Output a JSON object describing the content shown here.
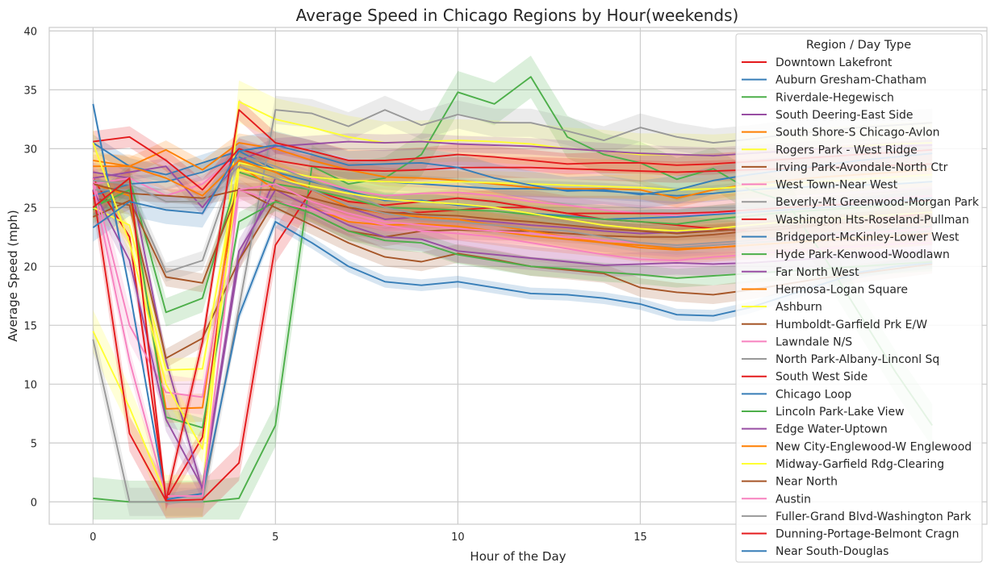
{
  "chart_data": {
    "type": "line",
    "title": "Average Speed in Chicago Regions by Hour(weekends)",
    "xlabel": "Hour of the Day",
    "ylabel": "Average Speed (mph)",
    "xlim": [
      -1.2,
      24.5
    ],
    "ylim": [
      -1.9,
      40.3
    ],
    "xticks": [
      0,
      5,
      10,
      15
    ],
    "yticks": [
      0,
      5,
      10,
      15,
      20,
      25,
      30,
      35,
      40
    ],
    "grid": true,
    "legend": {
      "title": "Region / Day Type",
      "placement": "top-right"
    },
    "x": [
      0,
      1,
      2,
      3,
      4,
      5,
      6,
      7,
      8,
      9,
      10,
      11,
      12,
      13,
      14,
      15,
      16,
      17,
      18,
      19,
      20,
      21,
      22,
      23
    ],
    "series": [
      {
        "name": "Downtown Lakefront",
        "color": "#e41a1c",
        "band": 0.8,
        "values": [
          27.5,
          22.5,
          0.2,
          5.5,
          28.5,
          27.5,
          26.5,
          25.5,
          25.2,
          25.5,
          25.8,
          25.5,
          25.0,
          24.5,
          24.0,
          23.8,
          23.5,
          23.2,
          23.0,
          23.2,
          23.5,
          23.8,
          24.2,
          24.6
        ]
      },
      {
        "name": "Auburn Gresham-Chatham",
        "color": "#377eb8",
        "band": 0.7,
        "values": [
          30.5,
          28.5,
          27.8,
          28.8,
          29.8,
          28.2,
          27.6,
          27.3,
          27.2,
          27.0,
          26.8,
          26.6,
          26.6,
          26.5,
          26.4,
          26.2,
          26.0,
          26.2,
          26.5,
          26.7,
          26.8,
          26.9,
          27.0,
          27.2
        ]
      },
      {
        "name": "Riverdale-Hegewisch",
        "color": "#4daf4a",
        "band": 1.8,
        "values": [
          0.3,
          0.0,
          0.0,
          0.0,
          0.3,
          6.5,
          28.5,
          27.0,
          27.5,
          29.5,
          34.8,
          33.8,
          36.1,
          31.0,
          29.5,
          28.8,
          27.4,
          28.3,
          26.5,
          25.5,
          21.0,
          16.0,
          11.0,
          6.5
        ]
      },
      {
        "name": "South Deering-East Side",
        "color": "#984ea3",
        "band": 0.8,
        "values": [
          28.0,
          27.5,
          12.0,
          1.0,
          20.5,
          27.5,
          26.5,
          25.0,
          24.0,
          24.2,
          24.0,
          23.8,
          23.5,
          23.3,
          23.0,
          22.8,
          22.9,
          23.0,
          23.2,
          23.4,
          23.6,
          23.8,
          24.0,
          24.2
        ]
      },
      {
        "name": "South Shore-S Chicago-Avlon",
        "color": "#ff7f00",
        "band": 0.8,
        "values": [
          29.0,
          28.5,
          29.9,
          28.2,
          30.5,
          30.0,
          29.0,
          28.2,
          27.6,
          27.5,
          27.3,
          27.0,
          26.7,
          26.6,
          26.6,
          26.5,
          25.8,
          26.5,
          27.0,
          27.3,
          27.6,
          27.8,
          28.0,
          28.3
        ]
      },
      {
        "name": "Rogers Park - West Ridge",
        "color": "#ffff33",
        "band": 1.8,
        "values": [
          14.5,
          8.0,
          0.5,
          0.5,
          34.0,
          32.5,
          31.8,
          31.0,
          30.5,
          30.6,
          30.7,
          30.6,
          30.4,
          30.0,
          29.8,
          29.5,
          29.5,
          29.4,
          29.6,
          29.8,
          30.0,
          30.2,
          30.4,
          30.5
        ]
      },
      {
        "name": "Irving Park-Avondale-North Ctr",
        "color": "#a65628",
        "band": 0.8,
        "values": [
          25.8,
          25.2,
          12.2,
          13.9,
          20.5,
          25.6,
          24.5,
          23.0,
          22.5,
          23.0,
          23.1,
          23.0,
          23.0,
          22.8,
          22.6,
          22.5,
          22.5,
          22.7,
          23.0,
          23.2,
          23.5,
          23.8,
          24.0,
          24.3
        ]
      },
      {
        "name": "West Town-Near West",
        "color": "#f781bf",
        "band": 0.7,
        "values": [
          27.0,
          27.5,
          26.0,
          27.0,
          29.5,
          28.5,
          27.5,
          26.5,
          26.0,
          26.2,
          26.3,
          26.0,
          25.5,
          25.2,
          24.8,
          24.5,
          24.3,
          24.5,
          24.8,
          25.0,
          25.2,
          25.5,
          25.8,
          26.0
        ]
      },
      {
        "name": "Beverly-Mt Greenwood-Morgan Park",
        "color": "#999999",
        "band": 1.2,
        "values": [
          13.8,
          0.0,
          0.0,
          0.0,
          16.5,
          33.3,
          33.0,
          31.9,
          33.3,
          32.0,
          32.9,
          32.2,
          32.2,
          31.5,
          30.7,
          31.8,
          31.0,
          30.5,
          30.8,
          31.2,
          31.5,
          31.8,
          32.0,
          32.2
        ]
      },
      {
        "name": "Washington Hts-Roseland-Pullman",
        "color": "#e41a1c",
        "band": 1.5,
        "values": [
          26.5,
          5.8,
          0.1,
          0.2,
          3.3,
          21.8,
          26.5,
          25.0,
          24.5,
          24.6,
          24.8,
          25.0,
          25.0,
          24.5,
          24.5,
          24.5,
          24.5,
          24.6,
          24.8,
          25.0,
          25.2,
          25.3,
          25.5,
          25.6
        ]
      },
      {
        "name": "Bridgeport-McKinley-Lower West",
        "color": "#377eb8",
        "band": 0.7,
        "values": [
          26.0,
          27.0,
          27.2,
          28.0,
          29.3,
          28.0,
          27.2,
          26.4,
          25.6,
          25.6,
          25.2,
          25.0,
          24.5,
          24.3,
          24.0,
          24.1,
          24.2,
          24.4,
          24.6,
          24.8,
          25.0,
          25.2,
          25.5,
          25.8
        ]
      },
      {
        "name": "Hyde Park-Kenwood-Woodlawn",
        "color": "#4daf4a",
        "band": 1.2,
        "values": [
          24.8,
          27.5,
          16.1,
          17.3,
          28.0,
          27.0,
          26.5,
          25.8,
          25.0,
          24.9,
          24.8,
          24.7,
          24.4,
          24.2,
          24.0,
          23.8,
          23.6,
          24.0,
          24.3,
          24.6,
          24.8,
          25.0,
          25.2,
          25.4
        ]
      },
      {
        "name": "Far North West",
        "color": "#984ea3",
        "band": 0.7,
        "values": [
          27.5,
          28.0,
          28.5,
          25.0,
          29.0,
          30.2,
          30.4,
          30.6,
          30.5,
          30.6,
          30.4,
          30.3,
          30.2,
          30.0,
          29.8,
          29.6,
          29.5,
          29.4,
          29.6,
          29.8,
          30.0,
          30.1,
          30.2,
          30.3
        ]
      },
      {
        "name": "Hermosa-Logan Square",
        "color": "#ff7f00",
        "band": 1.2,
        "values": [
          27.0,
          26.0,
          7.9,
          8.0,
          28.6,
          26.5,
          25.0,
          23.8,
          23.5,
          23.6,
          23.4,
          23.0,
          22.6,
          22.3,
          22.0,
          21.6,
          21.4,
          21.6,
          21.8,
          22.0,
          22.3,
          22.5,
          22.8,
          23.0
        ]
      },
      {
        "name": "Ashburn",
        "color": "#ffff33",
        "band": 1.0,
        "values": [
          25.0,
          23.5,
          11.2,
          11.3,
          28.8,
          28.2,
          27.6,
          27.3,
          27.2,
          27.1,
          27.2,
          27.1,
          27.0,
          26.9,
          26.8,
          26.7,
          26.5,
          26.6,
          26.8,
          27.0,
          27.2,
          27.4,
          27.6,
          27.8
        ]
      },
      {
        "name": "Humboldt-Garfield Prk E/W",
        "color": "#a65628",
        "band": 0.8,
        "values": [
          24.2,
          25.6,
          19.1,
          18.6,
          26.6,
          25.0,
          23.5,
          22.0,
          20.8,
          20.4,
          21.1,
          20.6,
          20.0,
          19.7,
          19.4,
          18.2,
          17.8,
          17.6,
          18.0,
          18.5,
          19.0,
          19.4,
          19.8,
          20.2
        ]
      },
      {
        "name": "Lawndale N/S",
        "color": "#f781bf",
        "band": 1.5,
        "values": [
          27.5,
          15.0,
          9.3,
          8.9,
          26.5,
          25.5,
          24.8,
          24.2,
          23.5,
          23.0,
          22.8,
          22.5,
          22.0,
          21.5,
          21.0,
          20.6,
          20.5,
          20.8,
          21.0,
          21.3,
          21.5,
          21.7,
          21.9,
          22.0
        ]
      },
      {
        "name": "North Park-Albany-Linconl Sq",
        "color": "#999999",
        "band": 0.8,
        "values": [
          26.5,
          26.5,
          19.5,
          20.5,
          29.5,
          28.5,
          27.3,
          26.2,
          25.0,
          24.4,
          24.0,
          23.5,
          23.0,
          22.5,
          22.0,
          21.8,
          21.6,
          21.8,
          22.0,
          22.2,
          22.4,
          22.6,
          22.8,
          23.0
        ]
      },
      {
        "name": "South West Side",
        "color": "#e41a1c",
        "band": 0.9,
        "values": [
          30.6,
          31.0,
          29.0,
          26.5,
          30.0,
          29.0,
          28.5,
          28.2,
          28.1,
          28.2,
          28.4,
          28.4,
          28.4,
          28.3,
          28.2,
          28.1,
          28.0,
          28.1,
          28.2,
          28.3,
          28.4,
          28.5,
          28.6,
          28.7
        ]
      },
      {
        "name": "Chicago Loop",
        "color": "#377eb8",
        "band": 0.5,
        "values": [
          33.8,
          18.0,
          0.2,
          0.7,
          15.8,
          23.8,
          22.0,
          20.0,
          18.7,
          18.4,
          18.7,
          18.2,
          17.7,
          17.6,
          17.3,
          16.8,
          15.9,
          15.8,
          16.5,
          17.5,
          18.5,
          19.5,
          20.0,
          20.3
        ]
      },
      {
        "name": "Lincoln Park-Lake View",
        "color": "#4daf4a",
        "band": 0.8,
        "values": [
          25.0,
          26.5,
          7.2,
          6.3,
          23.8,
          25.5,
          24.5,
          23.0,
          22.2,
          22.0,
          21.0,
          20.5,
          20.0,
          19.8,
          19.5,
          19.3,
          19.0,
          19.2,
          19.4,
          19.6,
          19.8,
          20.0,
          20.2,
          20.4
        ]
      },
      {
        "name": "Edge Water-Uptown",
        "color": "#984ea3",
        "band": 1.0,
        "values": [
          26.5,
          20.5,
          7.0,
          1.2,
          21.3,
          26.5,
          25.0,
          23.5,
          22.5,
          22.3,
          21.3,
          21.0,
          20.7,
          20.4,
          20.1,
          20.2,
          20.3,
          20.2,
          20.3,
          20.5,
          20.7,
          20.9,
          21.1,
          21.3
        ]
      },
      {
        "name": "New City-Englewood-W Englewood",
        "color": "#ff7f00",
        "band": 1.0,
        "values": [
          28.5,
          28.5,
          27.5,
          26.0,
          29.0,
          28.0,
          26.5,
          25.0,
          24.5,
          24.2,
          24.0,
          23.5,
          23.0,
          22.5,
          22.0,
          21.8,
          21.5,
          21.6,
          21.8,
          22.0,
          22.2,
          22.4,
          22.6,
          22.8
        ]
      },
      {
        "name": "Midway-Garfield Rdg-Clearing",
        "color": "#ffff33",
        "band": 1.2,
        "values": [
          30.5,
          22.0,
          10.0,
          4.5,
          28.2,
          27.5,
          26.8,
          26.2,
          25.7,
          25.5,
          25.3,
          25.0,
          24.5,
          24.0,
          23.5,
          23.2,
          23.0,
          23.2,
          23.5,
          23.8,
          24.0,
          24.2,
          24.4,
          24.6
        ]
      },
      {
        "name": "Near North",
        "color": "#a65628",
        "band": 0.6,
        "values": [
          27.0,
          26.2,
          26.0,
          25.8,
          26.5,
          26.5,
          25.8,
          25.0,
          24.6,
          24.4,
          24.3,
          24.0,
          23.8,
          23.5,
          23.2,
          23.0,
          22.8,
          23.0,
          23.2,
          23.4,
          23.6,
          23.8,
          24.0,
          24.2
        ]
      },
      {
        "name": "Austin",
        "color": "#f781bf",
        "band": 1.0,
        "values": [
          27.0,
          12.0,
          0.5,
          0.5,
          26.5,
          27.0,
          25.5,
          24.5,
          23.8,
          23.5,
          23.2,
          23.0,
          22.8,
          22.5,
          22.2,
          22.0,
          21.8,
          22.0,
          22.2,
          22.4,
          22.6,
          22.8,
          23.0,
          23.2
        ]
      },
      {
        "name": "Fuller-Grand Blvd-Washington Park",
        "color": "#999999",
        "band": 0.8,
        "values": [
          27.3,
          27.0,
          25.5,
          25.5,
          28.5,
          27.5,
          26.5,
          25.2,
          24.5,
          24.0,
          23.8,
          23.5,
          23.2,
          23.0,
          22.5,
          22.0,
          21.8,
          22.0,
          22.2,
          22.5,
          22.8,
          23.0,
          23.2,
          23.4
        ]
      },
      {
        "name": "Dunning-Portage-Belmont Cragn",
        "color": "#e41a1c",
        "band": 0.9,
        "values": [
          25.0,
          27.5,
          0.1,
          13.6,
          33.3,
          30.5,
          29.8,
          29.0,
          29.0,
          29.2,
          29.5,
          29.3,
          29.0,
          28.7,
          28.8,
          28.8,
          28.6,
          28.7,
          28.9,
          29.1,
          29.3,
          29.5,
          29.7,
          29.9
        ]
      },
      {
        "name": "Near South-Douglas",
        "color": "#377eb8",
        "band": 1.2,
        "values": [
          23.3,
          25.5,
          24.8,
          24.5,
          29.8,
          30.3,
          29.5,
          28.6,
          28.7,
          28.8,
          28.4,
          27.5,
          26.9,
          26.4,
          26.5,
          26.1,
          26.5,
          27.3,
          27.8,
          28.2,
          28.6,
          29.0,
          29.3,
          29.6
        ]
      }
    ]
  }
}
